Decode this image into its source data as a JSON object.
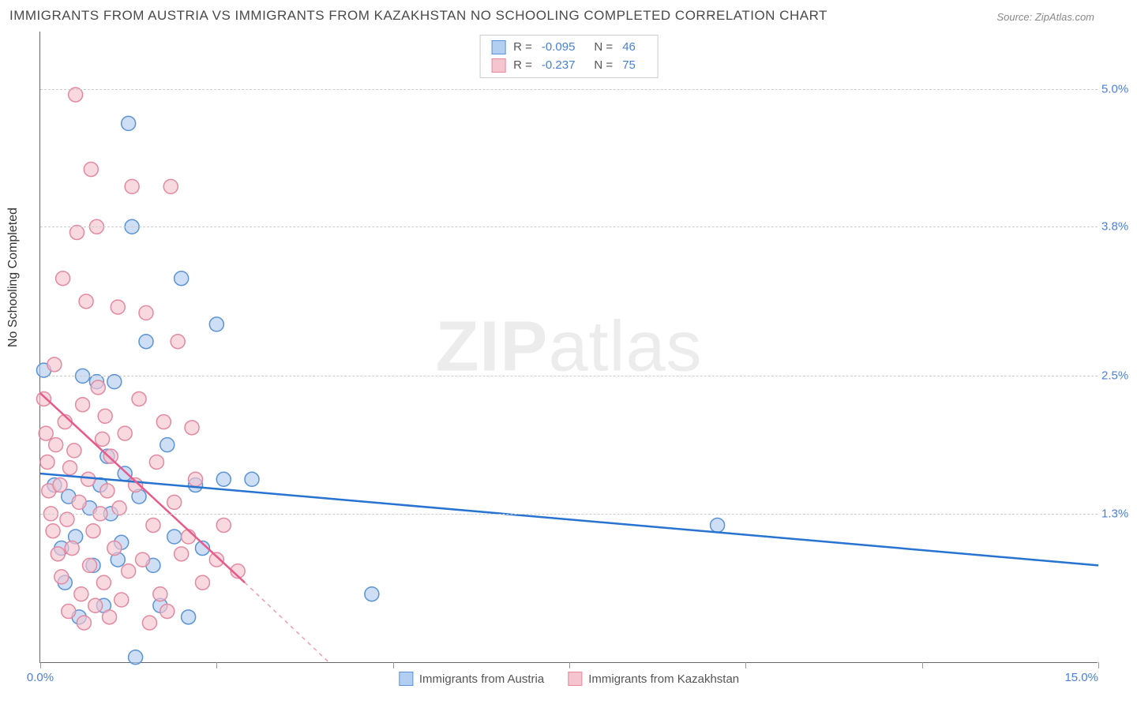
{
  "title": "IMMIGRANTS FROM AUSTRIA VS IMMIGRANTS FROM KAZAKHSTAN NO SCHOOLING COMPLETED CORRELATION CHART",
  "source": "Source: ZipAtlas.com",
  "y_axis_label": "No Schooling Completed",
  "watermark_bold": "ZIP",
  "watermark_light": "atlas",
  "chart": {
    "type": "scatter",
    "xlim": [
      0,
      15
    ],
    "ylim": [
      0,
      5.5
    ],
    "x_ticks": [
      0,
      2.5,
      5,
      7.5,
      10,
      12.5,
      15
    ],
    "x_tick_labels": {
      "0": "0.0%",
      "15": "15.0%"
    },
    "y_ticks": [
      1.3,
      2.5,
      3.8,
      5.0
    ],
    "y_tick_labels": [
      "1.3%",
      "2.5%",
      "3.8%",
      "5.0%"
    ],
    "grid_color": "#cccccc",
    "background_color": "#ffffff",
    "series": [
      {
        "name": "Immigrants from Austria",
        "color_fill": "#b3cef0",
        "color_stroke": "#5a93d6",
        "swatch_fill": "#b3cef0",
        "swatch_border": "#5a93d6",
        "marker_radius": 9,
        "line_color": "#2673d1",
        "line_width": 2.5,
        "R": "-0.095",
        "N": "46",
        "regression": {
          "x1": 0,
          "y1": 1.65,
          "x2": 15,
          "y2": 0.85
        },
        "points": [
          [
            0.05,
            2.55
          ],
          [
            0.2,
            1.55
          ],
          [
            0.3,
            1.0
          ],
          [
            0.35,
            0.7
          ],
          [
            0.4,
            1.45
          ],
          [
            0.5,
            1.1
          ],
          [
            0.55,
            0.4
          ],
          [
            0.6,
            2.5
          ],
          [
            0.7,
            1.35
          ],
          [
            0.75,
            0.85
          ],
          [
            0.8,
            2.45
          ],
          [
            0.85,
            1.55
          ],
          [
            0.9,
            0.5
          ],
          [
            0.95,
            1.8
          ],
          [
            1.0,
            1.3
          ],
          [
            1.05,
            2.45
          ],
          [
            1.1,
            0.9
          ],
          [
            1.15,
            1.05
          ],
          [
            1.2,
            1.65
          ],
          [
            1.25,
            4.7
          ],
          [
            1.3,
            3.8
          ],
          [
            1.35,
            0.05
          ],
          [
            1.4,
            1.45
          ],
          [
            1.5,
            2.8
          ],
          [
            1.6,
            0.85
          ],
          [
            1.7,
            0.5
          ],
          [
            1.8,
            1.9
          ],
          [
            1.9,
            1.1
          ],
          [
            2.0,
            3.35
          ],
          [
            2.1,
            0.4
          ],
          [
            2.2,
            1.55
          ],
          [
            2.3,
            1.0
          ],
          [
            2.5,
            2.95
          ],
          [
            2.6,
            1.6
          ],
          [
            3.0,
            1.6
          ],
          [
            4.7,
            0.6
          ],
          [
            9.6,
            1.2
          ]
        ]
      },
      {
        "name": "Immigrants from Kazakhstan",
        "color_fill": "#f5c5cf",
        "color_stroke": "#e389a0",
        "swatch_fill": "#f5c5cf",
        "swatch_border": "#e389a0",
        "marker_radius": 9,
        "line_color": "#e85a8a",
        "line_width": 2.5,
        "R": "-0.237",
        "N": "75",
        "regression": {
          "x1": 0,
          "y1": 2.35,
          "x2": 2.9,
          "y2": 0.7
        },
        "regression_dash": {
          "x1": 2.9,
          "y1": 0.7,
          "x2": 4.1,
          "y2": 0.0
        },
        "points": [
          [
            0.05,
            2.3
          ],
          [
            0.08,
            2.0
          ],
          [
            0.1,
            1.75
          ],
          [
            0.12,
            1.5
          ],
          [
            0.15,
            1.3
          ],
          [
            0.18,
            1.15
          ],
          [
            0.2,
            2.6
          ],
          [
            0.22,
            1.9
          ],
          [
            0.25,
            0.95
          ],
          [
            0.28,
            1.55
          ],
          [
            0.3,
            0.75
          ],
          [
            0.32,
            3.35
          ],
          [
            0.35,
            2.1
          ],
          [
            0.38,
            1.25
          ],
          [
            0.4,
            0.45
          ],
          [
            0.42,
            1.7
          ],
          [
            0.45,
            1.0
          ],
          [
            0.48,
            1.85
          ],
          [
            0.5,
            4.95
          ],
          [
            0.52,
            3.75
          ],
          [
            0.55,
            1.4
          ],
          [
            0.58,
            0.6
          ],
          [
            0.6,
            2.25
          ],
          [
            0.62,
            0.35
          ],
          [
            0.65,
            3.15
          ],
          [
            0.68,
            1.6
          ],
          [
            0.7,
            0.85
          ],
          [
            0.72,
            4.3
          ],
          [
            0.75,
            1.15
          ],
          [
            0.78,
            0.5
          ],
          [
            0.8,
            3.8
          ],
          [
            0.82,
            2.4
          ],
          [
            0.85,
            1.3
          ],
          [
            0.88,
            1.95
          ],
          [
            0.9,
            0.7
          ],
          [
            0.92,
            2.15
          ],
          [
            0.95,
            1.5
          ],
          [
            0.98,
            0.4
          ],
          [
            1.0,
            1.8
          ],
          [
            1.05,
            1.0
          ],
          [
            1.1,
            3.1
          ],
          [
            1.12,
            1.35
          ],
          [
            1.15,
            0.55
          ],
          [
            1.2,
            2.0
          ],
          [
            1.25,
            0.8
          ],
          [
            1.3,
            4.15
          ],
          [
            1.35,
            1.55
          ],
          [
            1.4,
            2.3
          ],
          [
            1.45,
            0.9
          ],
          [
            1.5,
            3.05
          ],
          [
            1.55,
            0.35
          ],
          [
            1.6,
            1.2
          ],
          [
            1.65,
            1.75
          ],
          [
            1.7,
            0.6
          ],
          [
            1.75,
            2.1
          ],
          [
            1.8,
            0.45
          ],
          [
            1.85,
            4.15
          ],
          [
            1.9,
            1.4
          ],
          [
            1.95,
            2.8
          ],
          [
            2.0,
            0.95
          ],
          [
            2.1,
            1.1
          ],
          [
            2.15,
            2.05
          ],
          [
            2.2,
            1.6
          ],
          [
            2.3,
            0.7
          ],
          [
            2.5,
            0.9
          ],
          [
            2.6,
            1.2
          ],
          [
            2.8,
            0.8
          ]
        ]
      }
    ]
  },
  "stats_box": {
    "r_label": "R =",
    "n_label": "N ="
  },
  "bottom_legend": {
    "items": [
      "Immigrants from Austria",
      "Immigrants from Kazakhstan"
    ]
  }
}
